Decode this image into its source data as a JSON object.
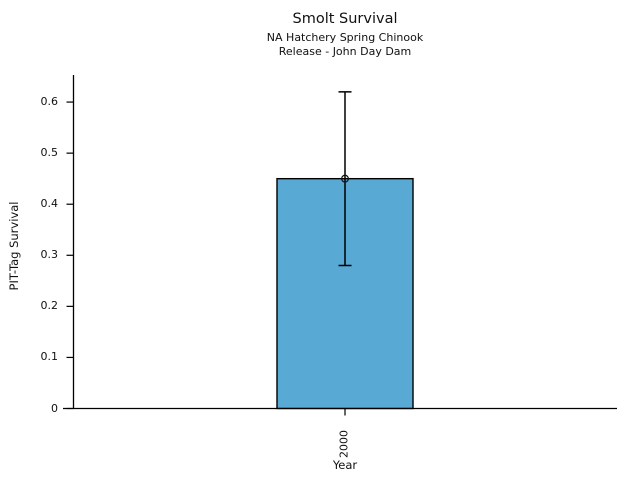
{
  "chart_data": {
    "type": "bar",
    "title": "Smolt Survival",
    "subtitle_line1": "NA Hatchery Spring Chinook",
    "subtitle_line2": "Release - John Day Dam",
    "xlabel": "Year",
    "ylabel": "PIT-Tag Survival",
    "categories": [
      "2000"
    ],
    "values": [
      0.45
    ],
    "error_low": [
      0.28
    ],
    "error_high": [
      0.62
    ],
    "yticks": [
      0,
      0.1,
      0.2,
      0.3,
      0.4,
      0.5,
      0.6
    ],
    "ytick_labels": [
      "0",
      "0.1",
      "0.2",
      "0.3",
      "0.4",
      "0.5",
      "0.6"
    ],
    "ylim": [
      0,
      0.653
    ],
    "grid": false,
    "legend": null,
    "marker": "open-circle",
    "bar_fill_color": "#58A9D4",
    "bar_edge_color": "#000000",
    "axis_color": "#000000",
    "error_bar_color": "#000000",
    "background_color": "#ffffff"
  }
}
